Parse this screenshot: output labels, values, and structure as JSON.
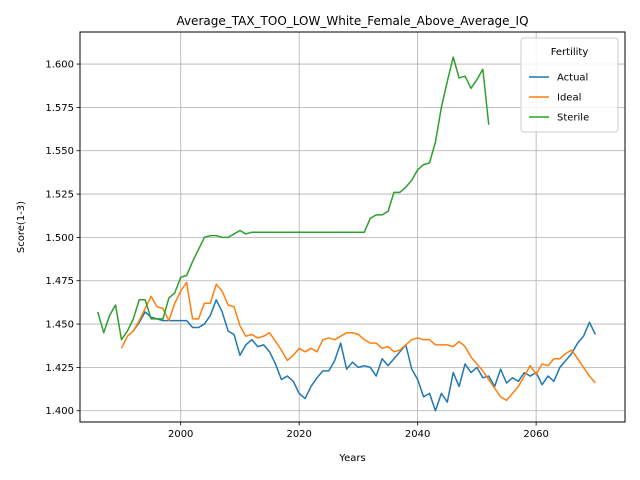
{
  "chart_data": {
    "type": "line",
    "title": "Average_TAX_TOO_LOW_White_Female_Above_Average_IQ",
    "xlabel": "Years",
    "ylabel": "Score(1-3)",
    "xlim": [
      1983,
      2075
    ],
    "ylim": [
      1.3935,
      1.6185
    ],
    "xticks": [
      2000,
      2020,
      2040,
      2060
    ],
    "yticks": [
      1.4,
      1.425,
      1.45,
      1.475,
      1.5,
      1.525,
      1.55,
      1.575,
      1.6
    ],
    "ytick_labels": [
      "1.400",
      "1.425",
      "1.450",
      "1.475",
      "1.500",
      "1.525",
      "1.550",
      "1.575",
      "1.600"
    ],
    "grid": true,
    "legend": {
      "title": "Fertility",
      "placement": "top-right"
    },
    "series": [
      {
        "name": "Actual",
        "color": "#1f77b4",
        "x": [
          1992,
          1993,
          1994,
          1995,
          1996,
          1997,
          1998,
          1999,
          2000,
          2001,
          2002,
          2003,
          2004,
          2005,
          2006,
          2007,
          2008,
          2009,
          2010,
          2011,
          2012,
          2013,
          2014,
          2015,
          2016,
          2017,
          2018,
          2019,
          2020,
          2021,
          2022,
          2023,
          2024,
          2025,
          2026,
          2027,
          2028,
          2029,
          2030,
          2031,
          2032,
          2033,
          2034,
          2035,
          2036,
          2037,
          2038,
          2039,
          2040,
          2041,
          2042,
          2043,
          2044,
          2045,
          2046,
          2047,
          2048,
          2049,
          2050,
          2051,
          2052,
          2053,
          2054,
          2055,
          2056,
          2057,
          2058,
          2059,
          2060,
          2061,
          2062,
          2063,
          2064,
          2065,
          2066,
          2067,
          2068,
          2069,
          2070
        ],
        "y": [
          1.446,
          1.451,
          1.457,
          1.454,
          1.453,
          1.452,
          1.452,
          1.452,
          1.452,
          1.452,
          1.448,
          1.448,
          1.45,
          1.455,
          1.464,
          1.457,
          1.446,
          1.444,
          1.432,
          1.438,
          1.441,
          1.437,
          1.438,
          1.434,
          1.427,
          1.418,
          1.42,
          1.417,
          1.41,
          1.407,
          1.414,
          1.419,
          1.423,
          1.423,
          1.429,
          1.439,
          1.424,
          1.428,
          1.425,
          1.426,
          1.425,
          1.42,
          1.43,
          1.426,
          1.43,
          1.434,
          1.438,
          1.424,
          1.418,
          1.408,
          1.41,
          1.4,
          1.41,
          1.405,
          1.422,
          1.414,
          1.427,
          1.422,
          1.425,
          1.419,
          1.42,
          1.414,
          1.424,
          1.416,
          1.419,
          1.417,
          1.422,
          1.42,
          1.422,
          1.415,
          1.42,
          1.417,
          1.425,
          1.429,
          1.433,
          1.439,
          1.443,
          1.451,
          1.444
        ]
      },
      {
        "name": "Ideal",
        "color": "#ff7f0e",
        "x": [
          1990,
          1991,
          1992,
          1993,
          1994,
          1995,
          1996,
          1997,
          1998,
          1999,
          2000,
          2001,
          2002,
          2003,
          2004,
          2005,
          2006,
          2007,
          2008,
          2009,
          2010,
          2011,
          2012,
          2013,
          2014,
          2015,
          2016,
          2017,
          2018,
          2019,
          2020,
          2021,
          2022,
          2023,
          2024,
          2025,
          2026,
          2027,
          2028,
          2029,
          2030,
          2031,
          2032,
          2033,
          2034,
          2035,
          2036,
          2037,
          2038,
          2039,
          2040,
          2041,
          2042,
          2043,
          2044,
          2045,
          2046,
          2047,
          2048,
          2049,
          2050,
          2051,
          2052,
          2053,
          2054,
          2055,
          2056,
          2057,
          2058,
          2059,
          2060,
          2061,
          2062,
          2063,
          2064,
          2065,
          2066,
          2067,
          2068,
          2069,
          2070
        ],
        "y": [
          1.436,
          1.443,
          1.446,
          1.452,
          1.459,
          1.466,
          1.46,
          1.459,
          1.452,
          1.462,
          1.469,
          1.474,
          1.453,
          1.453,
          1.462,
          1.462,
          1.473,
          1.469,
          1.461,
          1.46,
          1.449,
          1.443,
          1.444,
          1.442,
          1.443,
          1.445,
          1.44,
          1.435,
          1.429,
          1.432,
          1.436,
          1.434,
          1.436,
          1.434,
          1.441,
          1.442,
          1.441,
          1.443,
          1.445,
          1.445,
          1.444,
          1.441,
          1.439,
          1.439,
          1.436,
          1.437,
          1.434,
          1.435,
          1.438,
          1.441,
          1.442,
          1.441,
          1.441,
          1.438,
          1.438,
          1.438,
          1.437,
          1.44,
          1.437,
          1.431,
          1.427,
          1.423,
          1.418,
          1.413,
          1.408,
          1.406,
          1.41,
          1.414,
          1.42,
          1.426,
          1.421,
          1.427,
          1.426,
          1.43,
          1.43,
          1.433,
          1.435,
          1.43,
          1.425,
          1.42,
          1.416
        ]
      },
      {
        "name": "Sterile",
        "color": "#2ca02c",
        "x": [
          1986,
          1987,
          1988,
          1989,
          1990,
          1991,
          1992,
          1993,
          1994,
          1995,
          1996,
          1997,
          1998,
          1999,
          2000,
          2001,
          2002,
          2003,
          2004,
          2005,
          2006,
          2007,
          2008,
          2009,
          2010,
          2011,
          2012,
          2013,
          2014,
          2015,
          2016,
          2017,
          2018,
          2019,
          2020,
          2021,
          2022,
          2023,
          2024,
          2025,
          2026,
          2027,
          2028,
          2029,
          2030,
          2031,
          2032,
          2033,
          2034,
          2035,
          2036,
          2037,
          2038,
          2039,
          2040,
          2041,
          2042,
          2043,
          2044,
          2045,
          2046,
          2047,
          2048,
          2049,
          2050,
          2051,
          2052
        ],
        "y": [
          1.457,
          1.445,
          1.455,
          1.461,
          1.441,
          1.446,
          1.453,
          1.464,
          1.464,
          1.453,
          1.453,
          1.453,
          1.465,
          1.468,
          1.477,
          1.478,
          1.486,
          1.493,
          1.5,
          1.501,
          1.501,
          1.5,
          1.5,
          1.502,
          1.504,
          1.502,
          1.503,
          1.503,
          1.503,
          1.503,
          1.503,
          1.503,
          1.503,
          1.503,
          1.503,
          1.503,
          1.503,
          1.503,
          1.503,
          1.503,
          1.503,
          1.503,
          1.503,
          1.503,
          1.503,
          1.503,
          1.511,
          1.513,
          1.513,
          1.515,
          1.526,
          1.526,
          1.529,
          1.533,
          1.539,
          1.542,
          1.543,
          1.555,
          1.575,
          1.59,
          1.604,
          1.592,
          1.593,
          1.586,
          1.591,
          1.597,
          1.565
        ]
      }
    ]
  }
}
